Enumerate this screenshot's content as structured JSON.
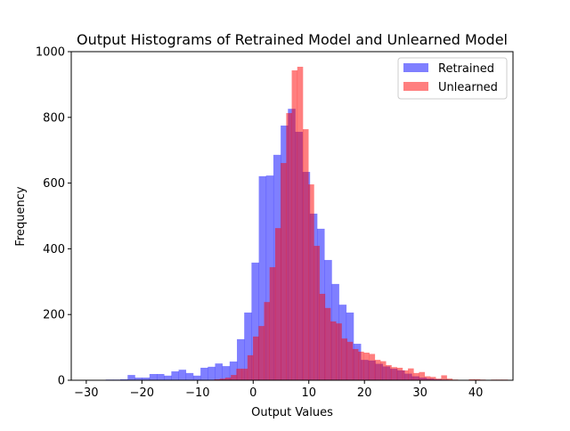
{
  "chart_data": {
    "type": "bar",
    "subtype": "histogram",
    "title": "Output Histograms of Retrained Model and Unlearned Model",
    "xlabel": "Output Values",
    "ylabel": "Frequency",
    "xlim": [
      -32.7,
      46.7
    ],
    "ylim": [
      0,
      1000
    ],
    "xticks": [
      -30,
      -20,
      -10,
      0,
      10,
      20,
      30,
      40
    ],
    "yticks": [
      0,
      200,
      400,
      600,
      800,
      1000
    ],
    "legend_position": "top-right",
    "series": [
      {
        "name": "Retrained",
        "color": "#0000ff",
        "alpha": 0.5,
        "bin_start": -26.5,
        "bin_width": 1.31,
        "counts": [
          2,
          2,
          3,
          16,
          8,
          8,
          19,
          19,
          14,
          27,
          32,
          22,
          14,
          38,
          41,
          51,
          43,
          57,
          125,
          206,
          358,
          621,
          623,
          686,
          775,
          826,
          756,
          634,
          507,
          461,
          366,
          293,
          230,
          206,
          111,
          62,
          60,
          50,
          42,
          35,
          30,
          20,
          12,
          8,
          5,
          3,
          2,
          1
        ]
      },
      {
        "name": "Unlearned",
        "color": "#ff0000",
        "alpha": 0.5,
        "bin_start": -7.0,
        "bin_width": 0.995,
        "counts": [
          3,
          5,
          8,
          16,
          35,
          35,
          76,
          133,
          165,
          238,
          344,
          463,
          661,
          813,
          943,
          954,
          764,
          596,
          409,
          263,
          220,
          179,
          173,
          127,
          117,
          95,
          87,
          84,
          80,
          62,
          58,
          46,
          40,
          38,
          30,
          36,
          22,
          25,
          12,
          10,
          5,
          15,
          5,
          2,
          1,
          1,
          3,
          3,
          2,
          0,
          2,
          2,
          2
        ]
      }
    ]
  }
}
